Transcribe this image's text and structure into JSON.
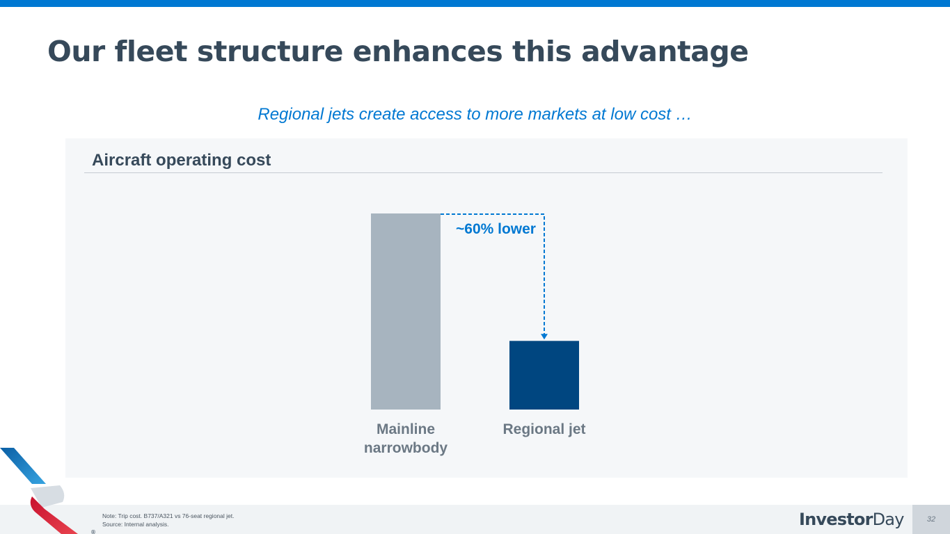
{
  "header": {
    "title": "Our fleet structure enhances this advantage"
  },
  "subtitle": "Regional jets create access to more markets at low cost …",
  "panel": {
    "title": "Aircraft operating cost"
  },
  "chart_data": {
    "type": "bar",
    "categories": [
      "Mainline narrowbody",
      "Regional jet"
    ],
    "category_labels": [
      [
        "Mainline",
        "narrowbody"
      ],
      [
        "Regional jet"
      ]
    ],
    "values": [
      100,
      35
    ],
    "ylim": [
      0,
      100
    ],
    "colors": [
      "#a7b4bf",
      "#004680"
    ],
    "annotation": {
      "text": "~60% lower",
      "from": "Mainline narrowbody",
      "to": "Regional jet",
      "style": "dashed-arrow",
      "color": "#0078d2"
    },
    "grid": false,
    "axes_visible": false
  },
  "footer": {
    "note": "Note: Trip cost. B737/A321 vs 76-seat regional jet.",
    "source": "Source: Internal analysis.",
    "brand_part1": "Investor",
    "brand_part2": "Day",
    "page_number": "32"
  },
  "colors": {
    "accent": "#0078d2",
    "title_text": "#36495a",
    "panel_bg": "#f5f7f9",
    "mainline_bar": "#a7b4bf",
    "regional_bar": "#004680"
  }
}
